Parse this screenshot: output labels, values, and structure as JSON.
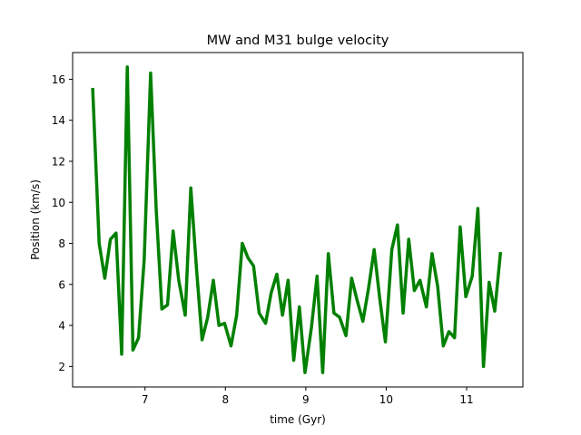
{
  "chart_data": {
    "type": "line",
    "title": "MW and M31 bulge velocity",
    "xlabel": "time (Gyr)",
    "ylabel": "Position (km/s)",
    "xlim": [
      6.1,
      11.7
    ],
    "ylim": [
      1.0,
      17.3
    ],
    "xticks": [
      7,
      8,
      9,
      10,
      11
    ],
    "yticks": [
      2,
      4,
      6,
      8,
      10,
      12,
      14,
      16
    ],
    "grid": false,
    "line_color": "#008000",
    "series": [
      {
        "x": [
          6.35,
          6.43,
          6.5,
          6.57,
          6.64,
          6.71,
          6.78,
          6.85,
          6.92,
          6.99,
          7.07,
          7.14,
          7.21,
          7.28,
          7.35,
          7.42,
          7.5,
          7.57,
          7.64,
          7.71,
          7.78,
          7.85,
          7.92,
          7.99,
          8.07,
          8.14,
          8.21,
          8.28,
          8.35,
          8.42,
          8.5,
          8.57,
          8.64,
          8.71,
          8.78,
          8.85,
          8.92,
          8.99,
          9.07,
          9.14,
          9.21,
          9.28,
          9.35,
          9.42,
          9.5,
          9.57,
          9.64,
          9.71,
          9.78,
          9.85,
          9.92,
          9.99,
          10.07,
          10.14,
          10.21,
          10.28,
          10.35,
          10.42,
          10.5,
          10.57,
          10.64,
          10.71,
          10.78,
          10.85,
          10.92,
          10.99,
          11.07,
          11.14,
          11.21,
          11.28,
          11.35,
          11.42
        ],
        "y": [
          15.5,
          8.0,
          6.3,
          8.2,
          8.5,
          2.6,
          16.6,
          2.8,
          3.4,
          7.2,
          16.3,
          9.6,
          4.8,
          5.0,
          8.6,
          6.2,
          4.5,
          10.7,
          6.8,
          3.3,
          4.4,
          6.2,
          4.0,
          4.1,
          3.0,
          4.5,
          8.0,
          7.3,
          6.9,
          4.6,
          4.1,
          5.6,
          6.5,
          4.5,
          6.2,
          2.3,
          4.9,
          1.7,
          3.9,
          6.4,
          1.7,
          7.5,
          4.6,
          4.4,
          3.5,
          6.3,
          5.2,
          4.2,
          5.8,
          7.7,
          5.3,
          3.2,
          7.7,
          8.9,
          4.6,
          8.2,
          5.7,
          6.2,
          4.9,
          7.5,
          5.9,
          3.0,
          3.7,
          3.4,
          8.8,
          5.4,
          6.4,
          9.7,
          2.0,
          6.1,
          4.7,
          7.5
        ]
      }
    ]
  }
}
